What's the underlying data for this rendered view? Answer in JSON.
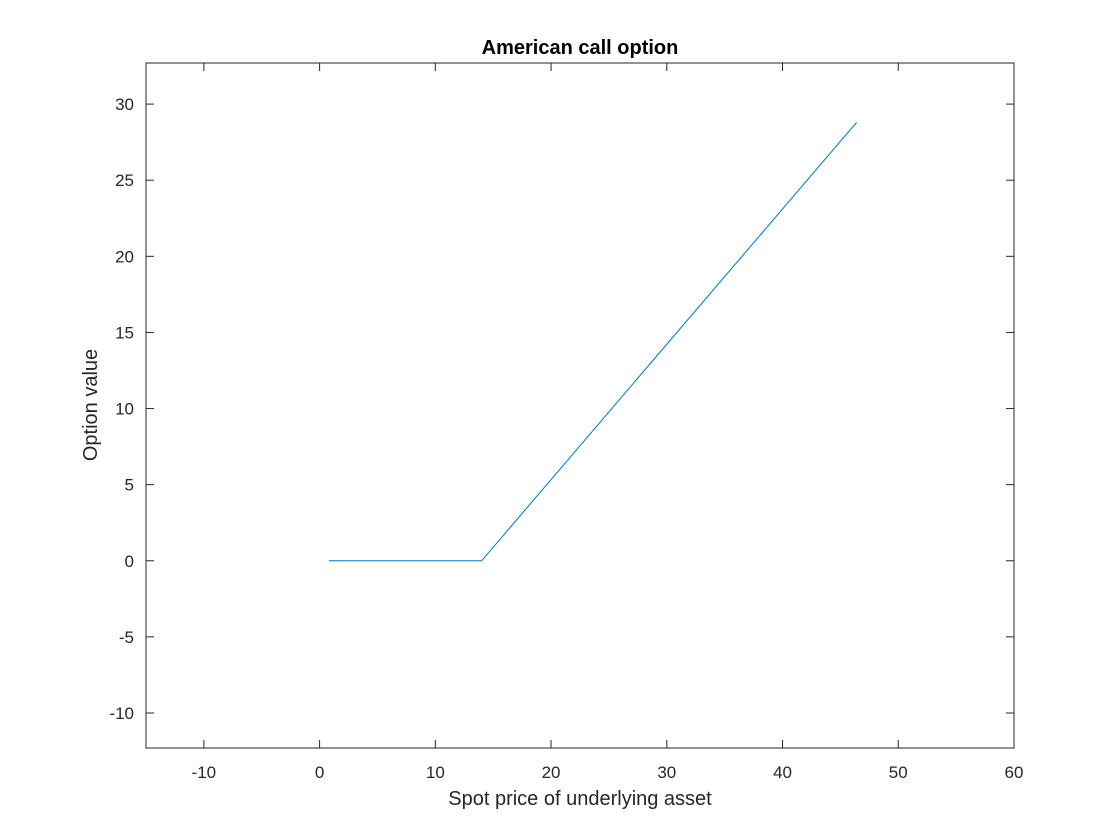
{
  "chart_data": {
    "type": "line",
    "title": "American call option",
    "xlabel": "Spot price of underlying asset",
    "ylabel": "Option value",
    "xlim": [
      -15,
      60
    ],
    "ylim": [
      -12.3,
      32.7
    ],
    "xticks": [
      -10,
      0,
      10,
      20,
      30,
      40,
      50,
      60
    ],
    "yticks": [
      -10,
      -5,
      0,
      5,
      10,
      15,
      20,
      25,
      30
    ],
    "grid": false,
    "legend": "none",
    "series": [
      {
        "color": "#0072BD",
        "x": [
          0.8,
          14.0,
          46.4
        ],
        "y": [
          0,
          0,
          28.8
        ]
      }
    ]
  }
}
